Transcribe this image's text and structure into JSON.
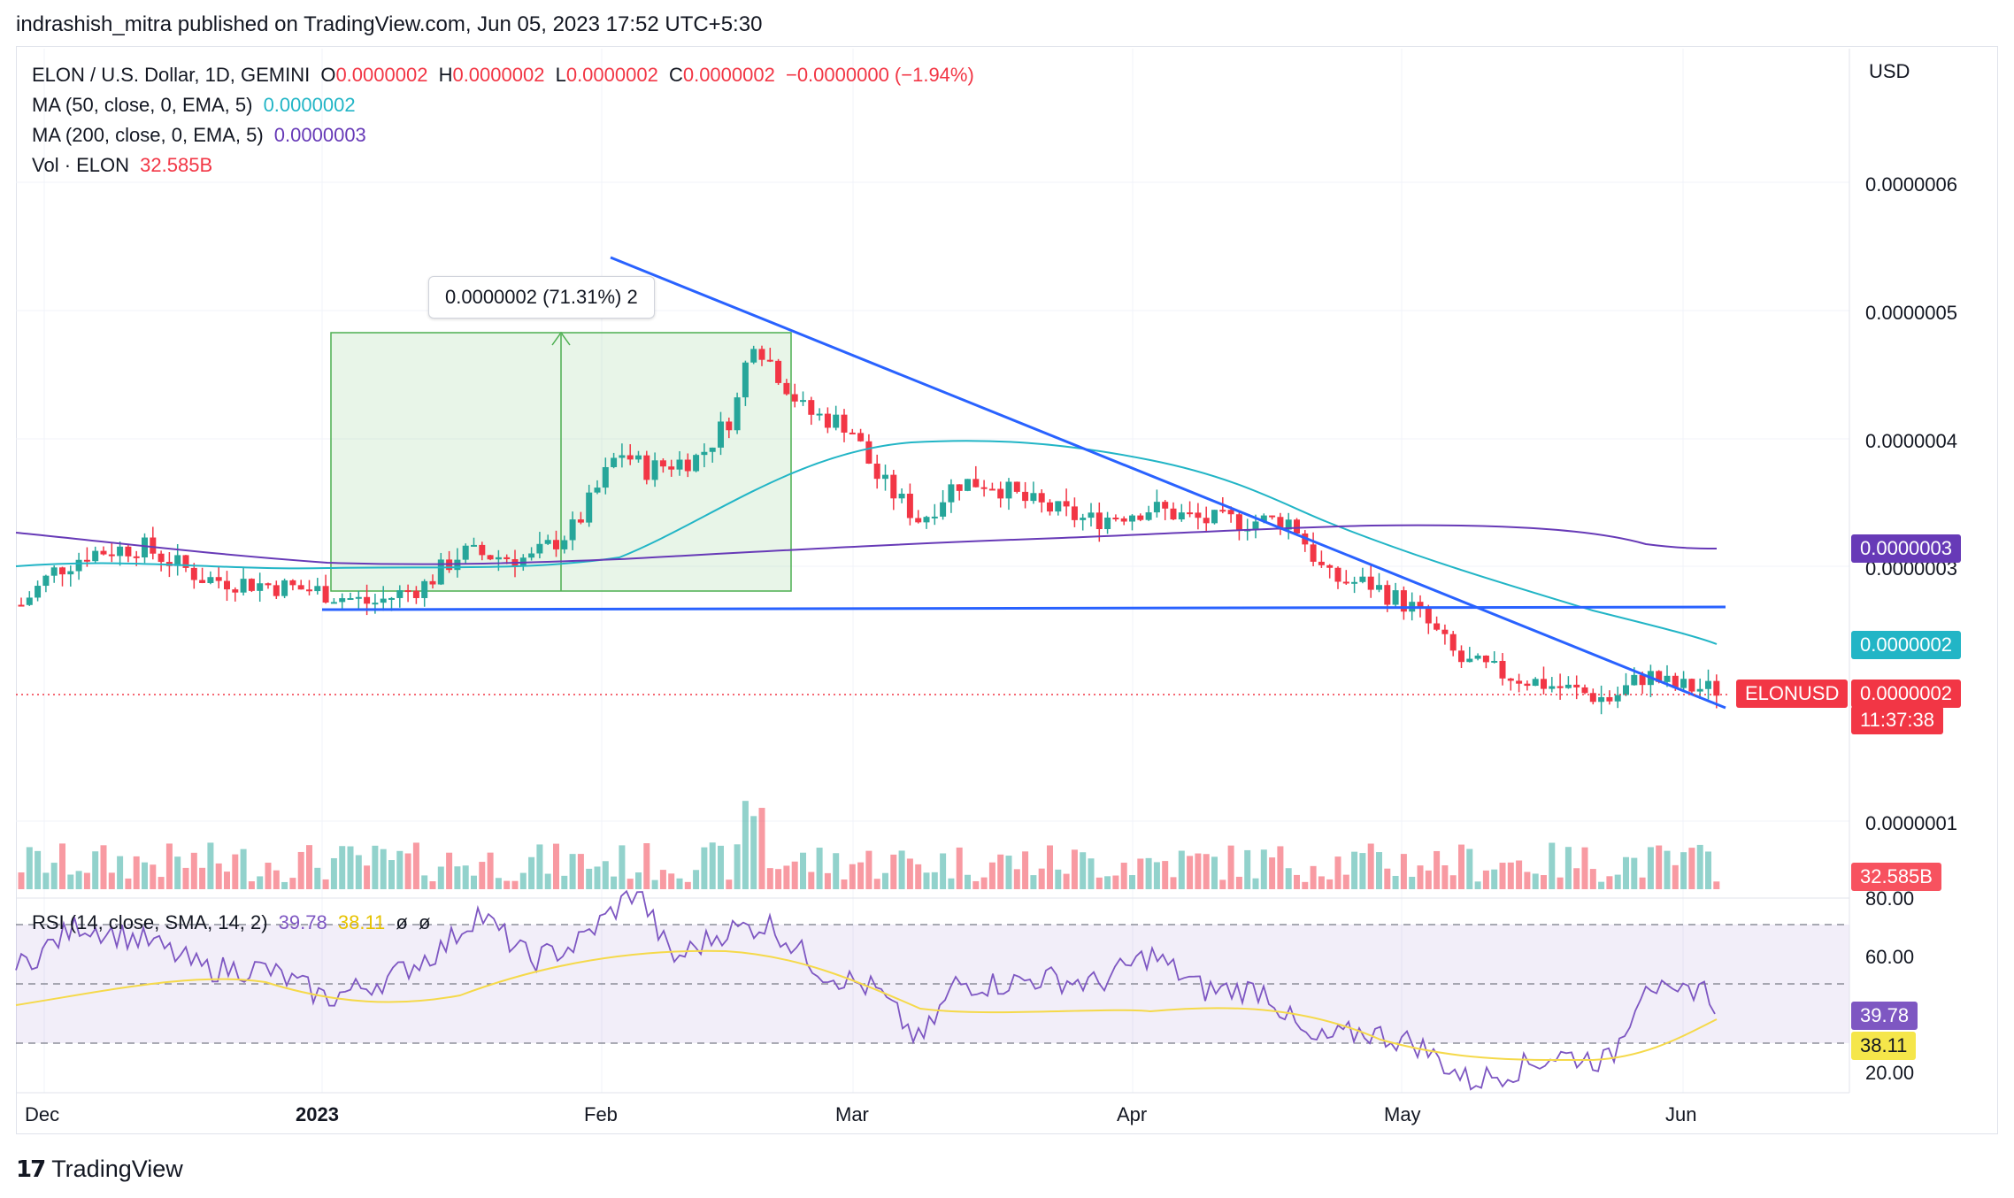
{
  "publisher_line": "indrashish_mitra published on TradingView.com, Jun 05, 2023 17:52 UTC+5:30",
  "symbol_line": "ELON / U.S. Dollar, 1D, GEMINI",
  "ohlc": {
    "o_label": "O",
    "o_value": "0.0000002",
    "h_label": "H",
    "h_value": "0.0000002",
    "l_label": "L",
    "l_value": "0.0000002",
    "c_label": "C",
    "c_value": "0.0000002",
    "change": "−0.0000000 (−1.94%)"
  },
  "indicators": {
    "ma50_label": "MA (50, close, 0, EMA, 5)",
    "ma50_value": "0.0000002",
    "ma200_label": "MA (200, close, 0, EMA, 5)",
    "ma200_value": "0.0000003",
    "vol_label": "Vol · ELON",
    "vol_value": "32.585B",
    "rsi_label": "RSI (14, close, SMA, 14, 2)",
    "rsi_value": "39.78",
    "rsi_sma_value": "38.11",
    "rsi_icon1": "ø",
    "rsi_icon2": "ø"
  },
  "currency": "USD",
  "price_axis": [
    "0.0000006",
    "0.0000005",
    "0.0000004",
    "0.0000003",
    "0.0000001"
  ],
  "price_tags": {
    "ma200": "0.0000003",
    "ma50": "0.0000002",
    "symbol": "ELONUSD",
    "last": "0.0000002",
    "countdown": "11:37:38",
    "volume": "32.585B"
  },
  "rsi_axis": [
    "80.00",
    "60.00",
    "20.00"
  ],
  "rsi_tags": {
    "rsi": "39.78",
    "sma": "38.11"
  },
  "time_axis": [
    "Dec",
    "2023",
    "Feb",
    "Mar",
    "Apr",
    "May",
    "Jun"
  ],
  "measure_label": "0.0000002 (71.31%) 2",
  "footer_brand": "TradingView",
  "colors": {
    "up": "#26a69a",
    "down": "#f23645",
    "ma50": "#22b5c6",
    "ma200": "#673ab7",
    "trendline": "#2962ff",
    "rsi": "#7e57c2",
    "rsi_sma": "#f5d94a",
    "measure": "#4caf50"
  },
  "icons": {
    "logo": "tradingview-logo-icon"
  },
  "chart_data": {
    "type": "candlestick",
    "x": [
      "2022-11-25",
      "2022-12-01",
      "2022-12-15",
      "2023-01-01",
      "2023-01-15",
      "2023-02-01",
      "2023-02-17",
      "2023-02-22",
      "2023-03-01",
      "2023-03-15",
      "2023-04-01",
      "2023-04-15",
      "2023-05-01",
      "2023-05-15",
      "2023-05-25",
      "2023-06-05"
    ],
    "close": [
      2.65e-07,
      2.95e-07,
      3.1e-07,
      2.75e-07,
      2.9e-07,
      3.1e-07,
      4.8e-07,
      4.4e-07,
      3.5e-07,
      3.5e-07,
      3.35e-07,
      3.25e-07,
      2.65e-07,
      2.1e-07,
      1.9e-07,
      2.03e-07
    ],
    "ma50_last": 2e-07,
    "ma200_last": 3e-07,
    "rsi_last": 39.78,
    "rsi_sma_last": 38.11,
    "rsi_bands": [
      70,
      50,
      30
    ],
    "measured_move": {
      "from": 2.8e-07,
      "to": 4.8e-07,
      "pct": 71.31
    },
    "support_level": 2.7e-07,
    "ylim": [
      8e-08,
      6.6e-07
    ]
  }
}
